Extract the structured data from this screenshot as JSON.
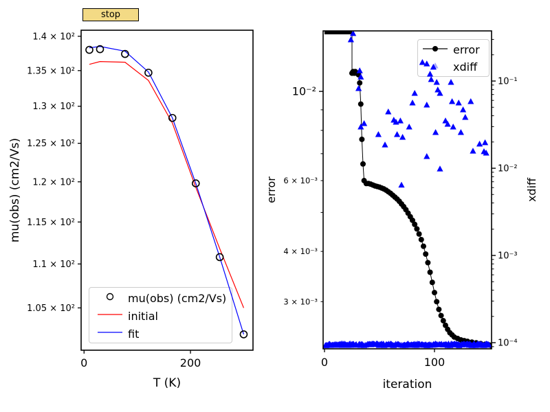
{
  "controls": {
    "stop_label": "stop",
    "button_fill": "#f3da85",
    "button_border": "#000000"
  },
  "colors": {
    "red": "#ff0000",
    "blue": "#0000ff",
    "black": "#000000",
    "legend_border": "#cccccc"
  },
  "chart_data": [
    {
      "id": "mu-vs-T",
      "type": "line",
      "xlabel": "T (K)",
      "ylabel": "mu(obs) (cm2/Vs)",
      "yscale": "log",
      "xlim": [
        -5.5,
        317.5
      ],
      "ylim": [
        100.4,
        140.9
      ],
      "x_ticks": [
        {
          "value": 0,
          "label": "0"
        },
        {
          "value": 200,
          "label": "200"
        }
      ],
      "y_ticks": [
        {
          "value": 140,
          "label": "1.4 × 10²"
        },
        {
          "value": 135,
          "label": "1.35 × 10²"
        },
        {
          "value": 130,
          "label": "1.3 × 10²"
        },
        {
          "value": 125,
          "label": "1.25 × 10²"
        },
        {
          "value": 120,
          "label": "1.2 × 10²"
        },
        {
          "value": 115,
          "label": "1.15 × 10²"
        },
        {
          "value": 110,
          "label": "1.1 × 10²"
        },
        {
          "value": 105,
          "label": "1.05 × 10²"
        }
      ],
      "x": [
        10,
        30,
        77,
        121,
        166,
        210,
        255,
        300
      ],
      "series": [
        {
          "name": "mu(obs) (cm2/Vs)",
          "type": "scatter",
          "marker": "open-circle",
          "color": "#000000",
          "values": [
            138.0,
            138.1,
            137.4,
            134.7,
            128.4,
            119.8,
            110.8,
            102.1
          ]
        },
        {
          "name": "initial",
          "type": "line",
          "color": "#ff0000",
          "values": [
            135.9,
            136.3,
            136.2,
            133.6,
            127.7,
            119.3,
            111.8,
            105.0
          ]
        },
        {
          "name": "fit",
          "type": "line",
          "color": "#0000ff",
          "values": [
            138.3,
            138.5,
            137.8,
            134.8,
            128.4,
            119.8,
            110.8,
            102.1
          ]
        }
      ],
      "legend": {
        "location": "lower left",
        "items": [
          "mu(obs) (cm2/Vs)",
          "initial",
          "fit"
        ]
      }
    },
    {
      "id": "convergence",
      "type": "line+scatter-dual-axis",
      "xlabel": "iteration",
      "ylabel_left": "error",
      "ylabel_right": "xdiff",
      "xlim": [
        -1.25,
        151.9
      ],
      "x_ticks": [
        {
          "value": 0,
          "label": "0"
        },
        {
          "value": 100,
          "label": "100"
        }
      ],
      "left_axis": {
        "scale": "log",
        "lim": [
          0.00229,
          0.01414
        ],
        "major_ticks": [
          {
            "value": 0.01,
            "label": "10⁻²"
          }
        ],
        "minor_labeled_ticks": [
          {
            "value": 0.006,
            "label": "6 × 10⁻³"
          },
          {
            "value": 0.004,
            "label": "4 × 10⁻³"
          },
          {
            "value": 0.003,
            "label": "3 × 10⁻³"
          }
        ],
        "minor_unlabeled_ticks": [
          0.009,
          0.008,
          0.007,
          0.005
        ]
      },
      "right_axis": {
        "scale": "log",
        "lim": [
          8.5e-05,
          0.3757
        ],
        "major_ticks": [
          {
            "value": 0.1,
            "label": "10⁻¹"
          },
          {
            "value": 0.01,
            "label": "10⁻²"
          },
          {
            "value": 0.001,
            "label": "10⁻³"
          },
          {
            "value": 0.0001,
            "label": "10⁻⁴"
          }
        ]
      },
      "series": [
        {
          "name": "error",
          "axis": "left",
          "type": "line+marker",
          "marker": "dot",
          "color": "#000000",
          "clipped_top_through_iter": 25,
          "x": [
            25,
            26,
            27,
            28,
            29,
            30,
            31,
            32,
            33,
            34,
            35,
            36,
            38,
            40,
            42,
            44,
            46,
            48,
            50,
            52,
            54,
            56,
            58,
            60,
            62,
            64,
            66,
            68,
            70,
            72,
            74,
            76,
            78,
            80,
            82,
            84,
            86,
            88,
            90,
            92,
            94,
            96,
            98,
            100,
            102,
            104,
            106,
            108,
            110,
            112,
            114,
            116,
            118,
            121,
            124,
            127,
            130,
            134,
            138,
            142,
            146,
            150,
            152
          ],
          "y": [
            0.0111,
            0.0112,
            0.0111,
            0.0112,
            0.0111,
            0.0111,
            0.011,
            0.0105,
            0.0093,
            0.0076,
            0.0066,
            0.006,
            0.0059,
            0.0059,
            0.00588,
            0.00585,
            0.00582,
            0.0058,
            0.00578,
            0.00575,
            0.00572,
            0.00568,
            0.00563,
            0.00558,
            0.00552,
            0.00546,
            0.0054,
            0.00533,
            0.00525,
            0.00517,
            0.00508,
            0.00498,
            0.00488,
            0.00478,
            0.00467,
            0.00455,
            0.00442,
            0.00428,
            0.00412,
            0.00394,
            0.00375,
            0.00355,
            0.00335,
            0.00316,
            0.003,
            0.00287,
            0.00277,
            0.00269,
            0.00262,
            0.00256,
            0.00251,
            0.00248,
            0.00245,
            0.00243,
            0.00241,
            0.0024,
            0.00239,
            0.00238,
            0.00237,
            0.00236,
            0.00235,
            0.00234,
            0.00233
          ]
        },
        {
          "name": "xdiff",
          "axis": "right",
          "type": "scatter",
          "marker": "triangle-up",
          "color": "#0000ff",
          "points": [
            [
              24,
              0.297
            ],
            [
              26,
              0.35
            ],
            [
              31,
              0.082
            ],
            [
              32,
              0.131
            ],
            [
              33,
              0.111
            ],
            [
              33,
              0.0297
            ],
            [
              36,
              0.0325
            ],
            [
              49,
              0.0243
            ],
            [
              55,
              0.0185
            ],
            [
              58,
              0.0442
            ],
            [
              63,
              0.0356
            ],
            [
              65,
              0.0337
            ],
            [
              66,
              0.0243
            ],
            [
              69,
              0.0349
            ],
            [
              70,
              0.0064
            ],
            [
              71,
              0.0226
            ],
            [
              77,
              0.0297
            ],
            [
              80,
              0.056
            ],
            [
              82,
              0.0721
            ],
            [
              89,
              0.163
            ],
            [
              93,
              0.157
            ],
            [
              93,
              0.053
            ],
            [
              93,
              0.0136
            ],
            [
              96,
              0.12
            ],
            [
              97,
              0.104
            ],
            [
              99,
              0.144
            ],
            [
              101,
              0.0257
            ],
            [
              102,
              0.0964
            ],
            [
              103,
              0.079
            ],
            [
              105,
              0.0721
            ],
            [
              105,
              0.0098
            ],
            [
              110,
              0.0349
            ],
            [
              112,
              0.0319
            ],
            [
              115,
              0.0964
            ],
            [
              116,
              0.0581
            ],
            [
              117,
              0.0297
            ],
            [
              122,
              0.056
            ],
            [
              124,
              0.0257
            ],
            [
              126,
              0.0467
            ],
            [
              128,
              0.0383
            ],
            [
              133,
              0.0581
            ],
            [
              135,
              0.0157
            ],
            [
              141,
              0.0189
            ],
            [
              145,
              0.0155
            ],
            [
              146,
              0.0196
            ],
            [
              147,
              0.0149
            ]
          ],
          "floor_band": {
            "value": 9.5e-05,
            "iter_from": 0,
            "iter_to": 152
          }
        }
      ],
      "legend": {
        "location": "upper right",
        "items": [
          "error",
          "xdiff"
        ]
      }
    }
  ]
}
